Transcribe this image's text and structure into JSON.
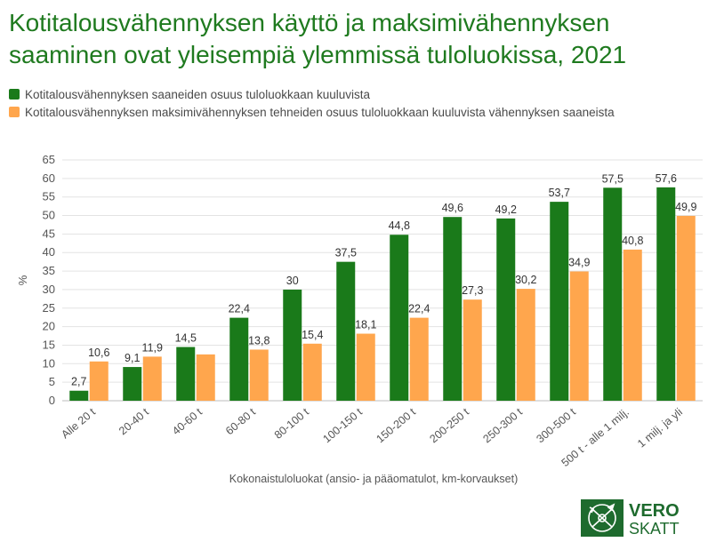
{
  "title": "Kotitalousvähennyksen käyttö ja maksimivähennyksen saaminen ovat yleisempiä ylemmissä tuloluokissa, 2021",
  "colors": {
    "green": "#1a7a1a",
    "orange": "#ffa64d",
    "title": "#1f7a1f"
  },
  "logo": {
    "line1": "VERO",
    "line2": "SKATT"
  },
  "chart_data": {
    "type": "bar",
    "categories": [
      "Alle 20 t",
      "20-40 t",
      "40-60 t",
      "60-80 t",
      "80-100 t",
      "100-150 t",
      "150-200 t",
      "200-250 t",
      "250-300 t",
      "300-500 t",
      "500 t - alle 1 milj.",
      "1 milj. ja yli"
    ],
    "series": [
      {
        "name": "Kotitalousvähennyksen saaneiden osuus tuloluokkaan kuuluvista",
        "values": [
          2.7,
          9.1,
          14.5,
          22.4,
          30,
          37.5,
          44.8,
          49.6,
          49.2,
          53.7,
          57.5,
          57.6
        ],
        "labels": [
          "2,7",
          "9,1",
          "14,5",
          "22,4",
          "30",
          "37,5",
          "44,8",
          "49,6",
          "49,2",
          "53,7",
          "57,5",
          "57,6"
        ],
        "color": "#1a7a1a"
      },
      {
        "name": "Kotitalousvähennyksen maksimivähennyksen tehneiden osuus tuloluokkaan kuuluvista vähennyksen saaneista",
        "values": [
          10.6,
          11.9,
          12.5,
          13.8,
          15.4,
          18.1,
          22.4,
          27.3,
          30.2,
          34.9,
          40.8,
          49.9
        ],
        "labels": [
          "10,6",
          "11,9",
          "",
          "13,8",
          "15,4",
          "18,1",
          "22,4",
          "27,3",
          "30,2",
          "34,9",
          "40,8",
          "49,9"
        ],
        "color": "#ffa64d"
      }
    ],
    "xlabel": "Kokonaistuloluokat (ansio- ja pääomatulot, km-korvaukset)",
    "ylabel": "%",
    "ylim": [
      0,
      65
    ],
    "yticks": [
      0,
      5,
      10,
      15,
      20,
      25,
      30,
      35,
      40,
      45,
      50,
      55,
      60,
      65
    ],
    "grid": true,
    "legend": "top-left"
  }
}
